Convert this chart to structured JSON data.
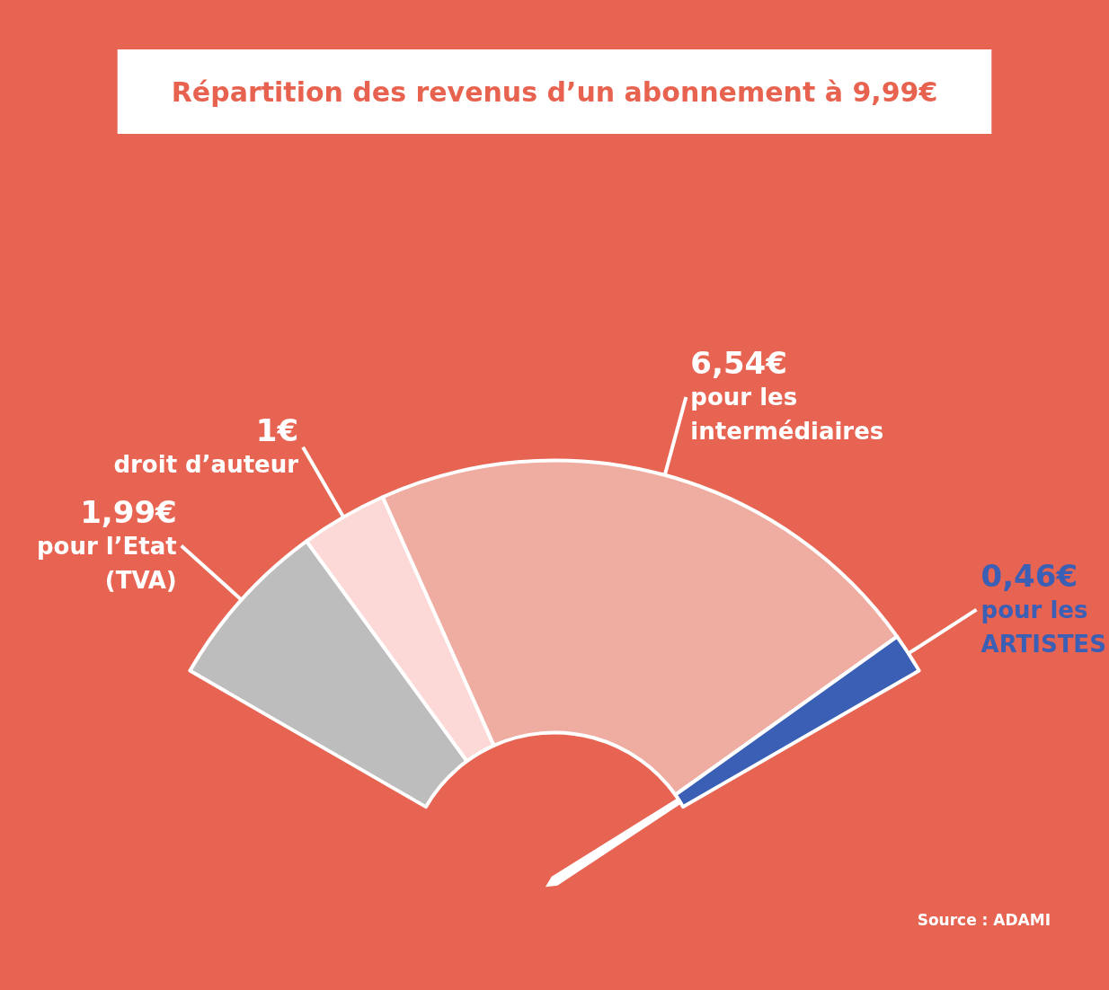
{
  "chart_data": {
    "type": "donut",
    "title": "Répartition des revenus d’un abonnement à 9,99€",
    "categories": [
      "pour l’Etat (TVA)",
      "droit d’auteur",
      "pour les intermédiaires",
      "pour les ARTISTES"
    ],
    "values": [
      1.99,
      1,
      6.54,
      0.46
    ],
    "value_labels": [
      "1,99€",
      "1€",
      "6,54€",
      "0,46€"
    ],
    "colors": [
      "#bdbdbd",
      "#fcd9d6",
      "#efaca1",
      "#3a5fb4"
    ],
    "needle": "pour les ARTISTES",
    "annotations": [
      "Source : ADAMI"
    ],
    "legend": false
  }
}
